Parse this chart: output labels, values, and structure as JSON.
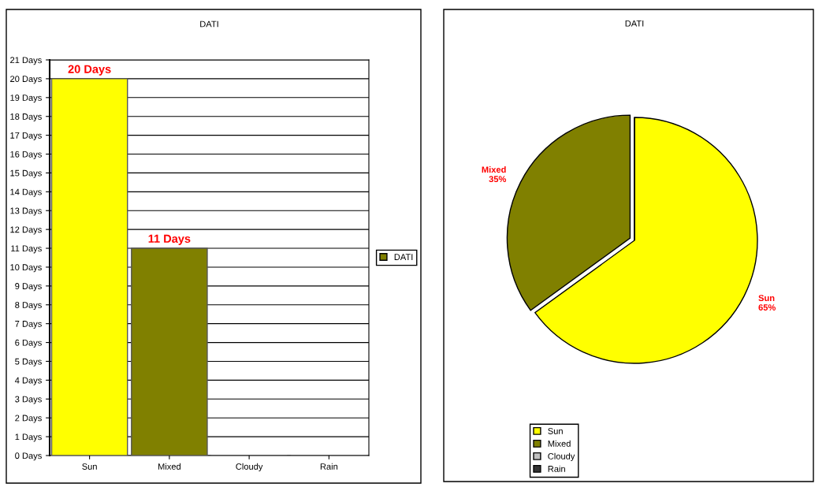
{
  "chart_data": [
    {
      "type": "bar",
      "title": "DATI",
      "categories": [
        "Sun",
        "Mixed",
        "Cloudy",
        "Rain"
      ],
      "series": [
        {
          "name": "DATI",
          "color": "#808000",
          "colors": [
            "#ffff00",
            "#808000",
            "#c0c0c0",
            "#333333"
          ],
          "values": [
            20,
            11,
            0,
            0
          ],
          "value_labels": [
            "20 Days",
            "11 Days",
            null,
            null
          ]
        }
      ],
      "ylim": [
        0,
        21
      ],
      "yticks": [
        {
          "value": 0,
          "label": "0 Days"
        },
        {
          "value": 1,
          "label": "1 Days"
        },
        {
          "value": 2,
          "label": "2 Days"
        },
        {
          "value": 3,
          "label": "3 Days"
        },
        {
          "value": 4,
          "label": "4 Days"
        },
        {
          "value": 5,
          "label": "5 Days"
        },
        {
          "value": 6,
          "label": "6 Days"
        },
        {
          "value": 7,
          "label": "7 Days"
        },
        {
          "value": 8,
          "label": "8 Days"
        },
        {
          "value": 9,
          "label": "9 Days"
        },
        {
          "value": 10,
          "label": "10 Days"
        },
        {
          "value": 11,
          "label": "11 Days"
        },
        {
          "value": 12,
          "label": "12 Days"
        },
        {
          "value": 13,
          "label": "13 Days"
        },
        {
          "value": 14,
          "label": "14 Days"
        },
        {
          "value": 15,
          "label": "15 Days"
        },
        {
          "value": 16,
          "label": "16 Days"
        },
        {
          "value": 17,
          "label": "17 Days"
        },
        {
          "value": 18,
          "label": "18 Days"
        },
        {
          "value": 19,
          "label": "19 Days"
        },
        {
          "value": 20,
          "label": "20 Days"
        },
        {
          "value": 21,
          "label": "21 Days"
        }
      ],
      "grid": "y",
      "legend": "right"
    },
    {
      "type": "pie",
      "title": "DATI",
      "categories": [
        "Sun",
        "Mixed",
        "Cloudy",
        "Rain"
      ],
      "values": [
        65,
        35,
        0,
        0
      ],
      "colors": [
        "#ffff00",
        "#808000",
        "#c0c0c0",
        "#333333"
      ],
      "value_labels": [
        "65%",
        "35%",
        null,
        null
      ],
      "legend": "bottom left"
    }
  ]
}
